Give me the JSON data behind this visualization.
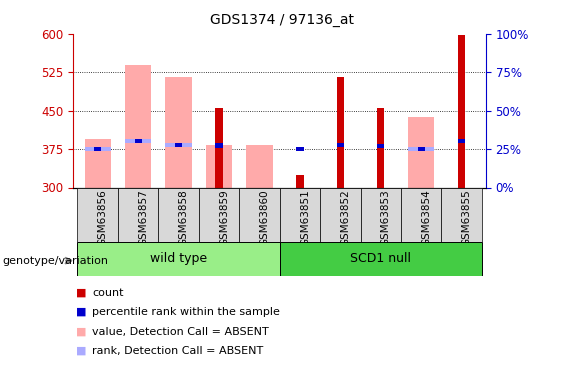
{
  "title": "GDS1374 / 97136_at",
  "samples": [
    "GSM63856",
    "GSM63857",
    "GSM63858",
    "GSM63859",
    "GSM63860",
    "GSM63851",
    "GSM63852",
    "GSM63853",
    "GSM63854",
    "GSM63855"
  ],
  "count_values": [
    null,
    null,
    null,
    455,
    null,
    325,
    515,
    455,
    null,
    597
  ],
  "percentile_values": [
    375,
    390,
    383,
    382,
    null,
    375,
    383,
    381,
    375,
    390
  ],
  "pink_bar_values": [
    395,
    540,
    515,
    383,
    383,
    null,
    null,
    null,
    438,
    null
  ],
  "lightblue_bar_values": [
    375,
    390,
    383,
    null,
    null,
    null,
    null,
    null,
    375,
    null
  ],
  "ylim": [
    300,
    600
  ],
  "yticks": [
    300,
    375,
    450,
    525,
    600
  ],
  "right_yticks": [
    0,
    25,
    50,
    75,
    100
  ],
  "right_ylim": [
    0,
    100
  ],
  "dark_red": "#cc0000",
  "dark_blue": "#0000cc",
  "pink": "#ffaaaa",
  "light_blue": "#aaaaff",
  "wild_type_green": "#99ee88",
  "scd1_green": "#44cc44",
  "bg_gray": "#d8d8d8",
  "left_axis_color": "#cc0000",
  "right_axis_color": "#0000cc",
  "legend_items": [
    {
      "color": "#cc0000",
      "label": "count"
    },
    {
      "color": "#0000cc",
      "label": "percentile rank within the sample"
    },
    {
      "color": "#ffaaaa",
      "label": "value, Detection Call = ABSENT"
    },
    {
      "color": "#aaaaff",
      "label": "rank, Detection Call = ABSENT"
    }
  ]
}
